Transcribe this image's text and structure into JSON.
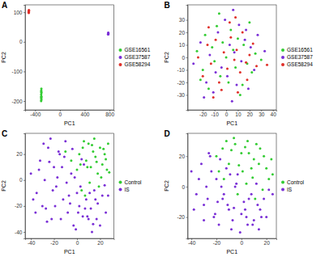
{
  "chart_data": [
    {
      "type": "scatter",
      "title": "A",
      "x_label": "PC1",
      "y_label": "PC2",
      "xlim": [
        -560,
        870
      ],
      "ylim": [
        -230,
        125
      ],
      "xticks": [
        -400,
        0,
        400,
        800
      ],
      "yticks": [
        -200,
        -100,
        0,
        100
      ],
      "grid": false,
      "legend": "right",
      "series": [
        {
          "name": "GSE16561",
          "color": "#33cc33",
          "x": [
            -298,
            -300,
            -297,
            -301,
            -299,
            -300,
            -298,
            -302,
            -299,
            -300
          ],
          "values": [
            -158,
            -165,
            -172,
            -178,
            -184,
            -190,
            -195,
            -200,
            -186,
            -170
          ]
        },
        {
          "name": "GSE37587",
          "color": "#7a2fd6",
          "x": [
            778,
            781,
            779,
            782,
            780,
            777
          ],
          "values": [
            25,
            28,
            31,
            27,
            30,
            26
          ]
        },
        {
          "name": "GSE58294",
          "color": "#e0302a",
          "x": [
            -502,
            -498,
            -500,
            -503,
            -497,
            -501
          ],
          "values": [
            100,
            104,
            107,
            102,
            106,
            98
          ]
        }
      ]
    },
    {
      "type": "scatter",
      "title": "B",
      "x_label": "PC1",
      "y_label": "PC2",
      "xlim": [
        -33,
        43
      ],
      "ylim": [
        -42,
        42
      ],
      "xticks": [
        -20,
        -10,
        0,
        10,
        20,
        30,
        40
      ],
      "yticks": [
        -30,
        -20,
        -10,
        0,
        10,
        20,
        30
      ],
      "grid": false,
      "legend": "right",
      "series": [
        {
          "name": "GSE16561",
          "color": "#33cc33",
          "x": [
            -25,
            -20,
            -18,
            -15,
            -12,
            -10,
            -8,
            -5,
            -3,
            0,
            2,
            4,
            6,
            8,
            10,
            12,
            15,
            18,
            20,
            22,
            25,
            -22,
            -6,
            14,
            30
          ],
          "values": [
            5,
            -10,
            18,
            -25,
            8,
            -3,
            25,
            -15,
            12,
            0,
            -20,
            22,
            6,
            -8,
            15,
            -30,
            10,
            -5,
            28,
            -12,
            3,
            -18,
            35,
            -22,
            -2
          ]
        },
        {
          "name": "GSE37587",
          "color": "#7a2fd6",
          "x": [
            -28,
            -22,
            -17,
            -14,
            -11,
            -7,
            -4,
            -1,
            1,
            3,
            5,
            7,
            9,
            11,
            13,
            16,
            19,
            21,
            24,
            27,
            -19,
            -9,
            6,
            17,
            33
          ],
          "values": [
            -5,
            12,
            -20,
            2,
            -28,
            20,
            -8,
            30,
            -15,
            10,
            -35,
            4,
            -22,
            26,
            -3,
            14,
            -25,
            8,
            -10,
            18,
            -32,
            -12,
            38,
            22,
            5
          ]
        },
        {
          "name": "GSE58294",
          "color": "#e0302a",
          "x": [
            -24,
            -20,
            -16,
            -13,
            -9,
            -6,
            -2,
            1,
            4,
            7,
            9,
            12,
            14,
            17,
            20,
            23,
            26,
            -15,
            -4,
            3,
            10,
            18,
            -11,
            8,
            35
          ],
          "values": [
            0,
            -15,
            10,
            -5,
            14,
            -20,
            4,
            -9,
            16,
            -2,
            6,
            -12,
            20,
            -4,
            2,
            11,
            -7,
            24,
            -26,
            28,
            -28,
            -18,
            -32,
            32,
            -6
          ]
        }
      ]
    },
    {
      "type": "scatter",
      "title": "C",
      "x_label": "PC1",
      "y_label": "PC2",
      "xlim": [
        -45,
        32
      ],
      "ylim": [
        -45,
        36
      ],
      "xticks": [
        -40,
        -20,
        0,
        20
      ],
      "yticks": [
        -40,
        -20,
        0,
        20
      ],
      "grid": false,
      "legend": "right",
      "series": [
        {
          "name": "Control",
          "color": "#33cc33",
          "x": [
            2,
            5,
            8,
            10,
            12,
            14,
            16,
            18,
            20,
            22,
            24,
            26,
            6,
            9,
            13,
            17,
            21,
            25,
            3,
            11,
            15,
            19,
            23,
            28,
            4,
            -5,
            -10,
            0,
            7,
            27
          ],
          "values": [
            20,
            25,
            15,
            28,
            10,
            22,
            18,
            5,
            25,
            12,
            20,
            8,
            30,
            10,
            27,
            14,
            2,
            16,
            12,
            -2,
            32,
            -5,
            24,
            6,
            -8,
            15,
            22,
            8,
            -12,
            28
          ]
        },
        {
          "name": "IS",
          "color": "#7a2fd6",
          "x": [
            -40,
            -35,
            -32,
            -30,
            -28,
            -25,
            -22,
            -20,
            -18,
            -15,
            -12,
            -10,
            -8,
            -5,
            -3,
            0,
            2,
            5,
            8,
            10,
            12,
            15,
            18,
            20,
            22,
            25,
            -38,
            -33,
            -27,
            -24,
            -21,
            -17,
            -14,
            -11,
            -7,
            -4,
            -1,
            3,
            6,
            9,
            13,
            16,
            -29,
            -19,
            -9,
            1,
            11,
            -26,
            -16,
            -6,
            4,
            14,
            24,
            -36,
            -23,
            -13,
            -2,
            7,
            17,
            27
          ],
          "values": [
            5,
            -10,
            15,
            -20,
            0,
            25,
            -30,
            10,
            -5,
            20,
            -15,
            30,
            -25,
            5,
            -35,
            -10,
            -20,
            -28,
            -15,
            -30,
            -22,
            -8,
            -18,
            -35,
            -12,
            -25,
            -15,
            8,
            -22,
            14,
            -8,
            2,
            -30,
            18,
            -12,
            24,
            -38,
            -5,
            12,
            -28,
            -40,
            -15,
            28,
            -20,
            -2,
            -25,
            -10,
            -32,
            22,
            -18,
            16,
            -34,
            -4,
            -25,
            32,
            10,
            2,
            -22,
            -30,
            -12
          ]
        }
      ]
    },
    {
      "type": "scatter",
      "title": "D",
      "x_label": "PC1",
      "y_label": "PC2",
      "xlim": [
        -43,
        28
      ],
      "ylim": [
        -34,
        35
      ],
      "xticks": [
        -40,
        -20,
        0,
        20
      ],
      "yticks": [
        -20,
        0,
        20
      ],
      "grid": false,
      "legend": "right",
      "series": [
        {
          "name": "Control",
          "color": "#33cc33",
          "x": [
            -20,
            -15,
            -10,
            -5,
            0,
            5,
            10,
            15,
            20,
            25,
            -18,
            -12,
            -8,
            -2,
            3,
            8,
            12,
            18,
            22,
            -6,
            1,
            6,
            14,
            24,
            -14,
            4,
            9,
            17,
            -3,
            11
          ],
          "values": [
            20,
            25,
            15,
            28,
            22,
            30,
            18,
            25,
            12,
            8,
            10,
            30,
            24,
            14,
            26,
            12,
            28,
            20,
            5,
            32,
            10,
            22,
            15,
            18,
            5,
            2,
            6,
            -2,
            -5,
            -8
          ]
        },
        {
          "name": "IS",
          "color": "#7a2fd6",
          "x": [
            -40,
            -36,
            -32,
            -30,
            -28,
            -25,
            -22,
            -20,
            -18,
            -15,
            -12,
            -10,
            -8,
            -5,
            -3,
            0,
            2,
            5,
            8,
            10,
            12,
            15,
            18,
            20,
            22,
            -38,
            -34,
            -27,
            -24,
            -21,
            -17,
            -14,
            -11,
            -7,
            -4,
            -1,
            3,
            6,
            9,
            13,
            16,
            25,
            -26,
            -16,
            -6,
            4,
            14,
            -30,
            -19,
            -9
          ],
          "values": [
            10,
            -5,
            15,
            -12,
            0,
            20,
            -20,
            5,
            -25,
            -8,
            12,
            -15,
            -28,
            0,
            8,
            -18,
            -10,
            -25,
            -5,
            -22,
            2,
            -15,
            -8,
            -20,
            -2,
            -15,
            5,
            -8,
            10,
            -18,
            18,
            -5,
            -12,
            -22,
            2,
            -30,
            -15,
            -8,
            -25,
            -12,
            -20,
            -5,
            22,
            0,
            -14,
            -20,
            -28,
            -22,
            -10,
            8
          ]
        }
      ]
    }
  ]
}
